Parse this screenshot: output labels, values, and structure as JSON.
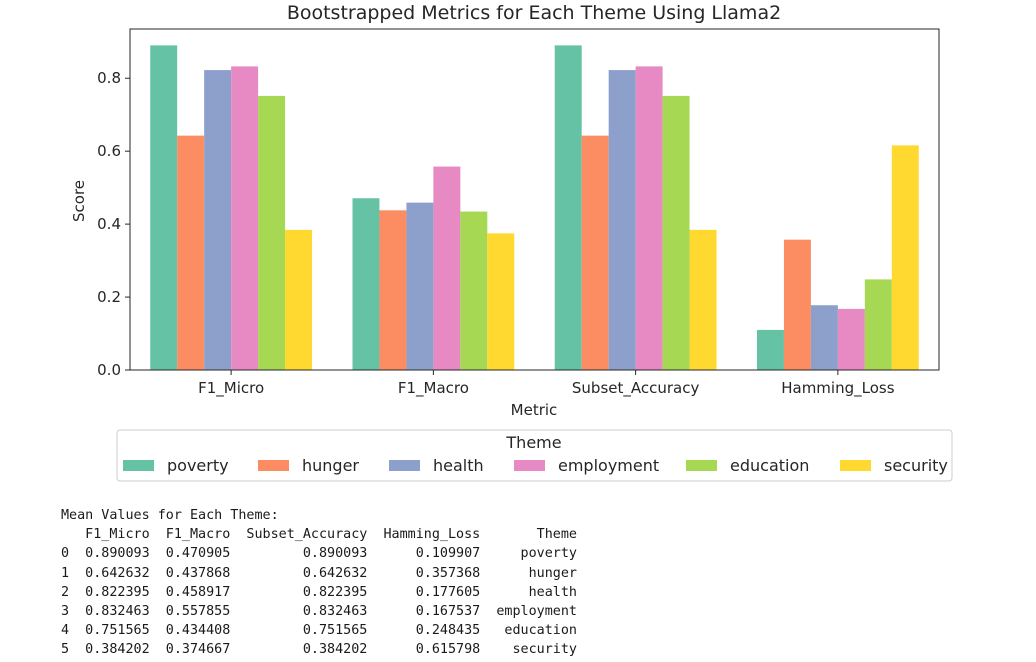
{
  "chart_data": {
    "type": "bar",
    "title": "Bootstrapped Metrics for Each Theme Using Llama2",
    "xlabel": "Metric",
    "ylabel": "Score",
    "categories": [
      "F1_Micro",
      "F1_Macro",
      "Subset_Accuracy",
      "Hamming_Loss"
    ],
    "ylim": [
      0,
      0.935
    ],
    "yticks": [
      "0.0",
      "0.2",
      "0.4",
      "0.6",
      "0.8"
    ],
    "ytick_values": [
      0,
      0.2,
      0.4,
      0.6,
      0.8
    ],
    "grid": false,
    "legend": {
      "title": "Theme",
      "placement": "bottom-center"
    },
    "series": [
      {
        "name": "poverty",
        "color": "#66c2a5",
        "values": [
          0.890093,
          0.470905,
          0.890093,
          0.109907
        ]
      },
      {
        "name": "hunger",
        "color": "#fc8d62",
        "values": [
          0.642632,
          0.437868,
          0.642632,
          0.357368
        ]
      },
      {
        "name": "health",
        "color": "#8da0cb",
        "values": [
          0.822395,
          0.458917,
          0.822395,
          0.177605
        ]
      },
      {
        "name": "employment",
        "color": "#e78ac3",
        "values": [
          0.832463,
          0.557855,
          0.832463,
          0.167537
        ]
      },
      {
        "name": "education",
        "color": "#a6d854",
        "values": [
          0.751565,
          0.434408,
          0.751565,
          0.248435
        ]
      },
      {
        "name": "security",
        "color": "#ffd92f",
        "values": [
          0.384202,
          0.374667,
          0.384202,
          0.615798
        ]
      }
    ]
  },
  "output": {
    "heading": "Mean Values for Each Theme:",
    "columns": [
      "F1_Micro",
      "F1_Macro",
      "Subset_Accuracy",
      "Hamming_Loss",
      "Theme"
    ],
    "rows": [
      [
        "0",
        "0.890093",
        "0.470905",
        "0.890093",
        "0.109907",
        "poverty"
      ],
      [
        "1",
        "0.642632",
        "0.437868",
        "0.642632",
        "0.357368",
        "hunger"
      ],
      [
        "2",
        "0.822395",
        "0.458917",
        "0.822395",
        "0.177605",
        "health"
      ],
      [
        "3",
        "0.832463",
        "0.557855",
        "0.832463",
        "0.167537",
        "employment"
      ],
      [
        "4",
        "0.751565",
        "0.434408",
        "0.751565",
        "0.248435",
        "education"
      ],
      [
        "5",
        "0.384202",
        "0.374667",
        "0.384202",
        "0.615798",
        "security"
      ]
    ]
  }
}
